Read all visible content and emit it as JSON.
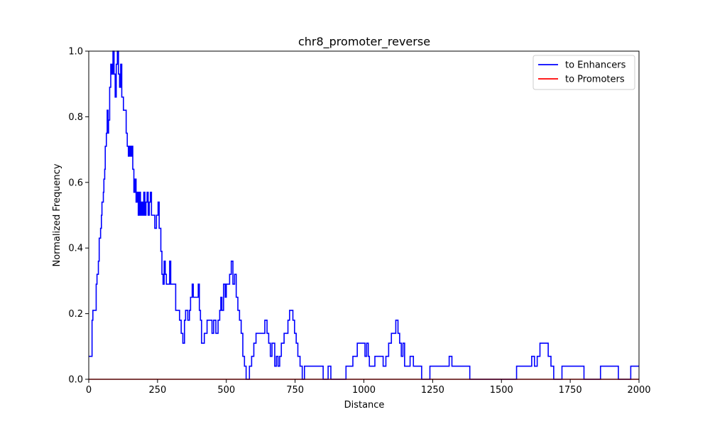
{
  "chart_data": {
    "type": "line",
    "title": "chr8_promoter_reverse",
    "xlabel": "Distance",
    "ylabel": "Normalized Frequency",
    "xlim": [
      0,
      2000
    ],
    "ylim": [
      0,
      1.0
    ],
    "xticks": [
      0,
      250,
      500,
      750,
      1000,
      1250,
      1500,
      1750,
      2000
    ],
    "xtick_labels": [
      "0",
      "250",
      "500",
      "750",
      "1000",
      "1250",
      "1500",
      "1750",
      "2000"
    ],
    "yticks": [
      0,
      0.2,
      0.4,
      0.6,
      0.8,
      1.0
    ],
    "ytick_labels": [
      "0.0",
      "0.2",
      "0.4",
      "0.6",
      "0.8",
      "1.0"
    ],
    "grid": false,
    "legend_position": "top-right",
    "series": [
      {
        "name": "to Enhancers",
        "color": "#0000ff",
        "step": true,
        "points": [
          [
            0,
            0.07
          ],
          [
            10,
            0.07
          ],
          [
            12,
            0.18
          ],
          [
            15,
            0.21
          ],
          [
            25,
            0.21
          ],
          [
            27,
            0.29
          ],
          [
            30,
            0.32
          ],
          [
            35,
            0.36
          ],
          [
            38,
            0.43
          ],
          [
            43,
            0.46
          ],
          [
            46,
            0.5
          ],
          [
            48,
            0.54
          ],
          [
            53,
            0.57
          ],
          [
            55,
            0.61
          ],
          [
            58,
            0.64
          ],
          [
            60,
            0.71
          ],
          [
            64,
            0.75
          ],
          [
            67,
            0.82
          ],
          [
            70,
            0.75
          ],
          [
            72,
            0.79
          ],
          [
            76,
            0.89
          ],
          [
            80,
            0.96
          ],
          [
            84,
            0.93
          ],
          [
            88,
            1.0
          ],
          [
            92,
            0.93
          ],
          [
            96,
            0.86
          ],
          [
            100,
            0.96
          ],
          [
            104,
            1.0
          ],
          [
            108,
            0.93
          ],
          [
            112,
            0.89
          ],
          [
            116,
            0.96
          ],
          [
            120,
            0.86
          ],
          [
            126,
            0.82
          ],
          [
            132,
            0.82
          ],
          [
            136,
            0.75
          ],
          [
            140,
            0.71
          ],
          [
            144,
            0.68
          ],
          [
            148,
            0.71
          ],
          [
            152,
            0.68
          ],
          [
            156,
            0.71
          ],
          [
            160,
            0.64
          ],
          [
            164,
            0.57
          ],
          [
            168,
            0.61
          ],
          [
            172,
            0.54
          ],
          [
            176,
            0.57
          ],
          [
            180,
            0.5
          ],
          [
            184,
            0.57
          ],
          [
            188,
            0.5
          ],
          [
            192,
            0.54
          ],
          [
            196,
            0.5
          ],
          [
            200,
            0.57
          ],
          [
            204,
            0.5
          ],
          [
            208,
            0.54
          ],
          [
            212,
            0.57
          ],
          [
            216,
            0.5
          ],
          [
            220,
            0.54
          ],
          [
            224,
            0.57
          ],
          [
            228,
            0.5
          ],
          [
            234,
            0.5
          ],
          [
            240,
            0.46
          ],
          [
            246,
            0.5
          ],
          [
            252,
            0.54
          ],
          [
            256,
            0.46
          ],
          [
            262,
            0.39
          ],
          [
            266,
            0.32
          ],
          [
            270,
            0.29
          ],
          [
            274,
            0.36
          ],
          [
            278,
            0.32
          ],
          [
            282,
            0.29
          ],
          [
            288,
            0.29
          ],
          [
            294,
            0.36
          ],
          [
            298,
            0.29
          ],
          [
            310,
            0.29
          ],
          [
            316,
            0.21
          ],
          [
            330,
            0.18
          ],
          [
            336,
            0.14
          ],
          [
            342,
            0.11
          ],
          [
            348,
            0.18
          ],
          [
            352,
            0.21
          ],
          [
            360,
            0.18
          ],
          [
            366,
            0.21
          ],
          [
            370,
            0.25
          ],
          [
            376,
            0.29
          ],
          [
            380,
            0.25
          ],
          [
            392,
            0.25
          ],
          [
            398,
            0.29
          ],
          [
            402,
            0.21
          ],
          [
            406,
            0.18
          ],
          [
            410,
            0.11
          ],
          [
            420,
            0.14
          ],
          [
            430,
            0.18
          ],
          [
            444,
            0.18
          ],
          [
            448,
            0.14
          ],
          [
            454,
            0.18
          ],
          [
            462,
            0.14
          ],
          [
            470,
            0.18
          ],
          [
            476,
            0.21
          ],
          [
            480,
            0.25
          ],
          [
            484,
            0.21
          ],
          [
            490,
            0.29
          ],
          [
            496,
            0.25
          ],
          [
            500,
            0.29
          ],
          [
            506,
            0.29
          ],
          [
            512,
            0.32
          ],
          [
            518,
            0.36
          ],
          [
            524,
            0.29
          ],
          [
            530,
            0.32
          ],
          [
            536,
            0.25
          ],
          [
            542,
            0.21
          ],
          [
            548,
            0.18
          ],
          [
            554,
            0.14
          ],
          [
            560,
            0.07
          ],
          [
            566,
            0.04
          ],
          [
            572,
            0.0
          ],
          [
            580,
            0.0
          ],
          [
            584,
            0.04
          ],
          [
            592,
            0.07
          ],
          [
            600,
            0.11
          ],
          [
            608,
            0.14
          ],
          [
            620,
            0.14
          ],
          [
            628,
            0.14
          ],
          [
            640,
            0.18
          ],
          [
            648,
            0.14
          ],
          [
            654,
            0.11
          ],
          [
            660,
            0.07
          ],
          [
            666,
            0.11
          ],
          [
            672,
            0.11
          ],
          [
            676,
            0.04
          ],
          [
            682,
            0.07
          ],
          [
            688,
            0.04
          ],
          [
            694,
            0.07
          ],
          [
            700,
            0.11
          ],
          [
            710,
            0.14
          ],
          [
            716,
            0.14
          ],
          [
            724,
            0.18
          ],
          [
            730,
            0.21
          ],
          [
            736,
            0.21
          ],
          [
            742,
            0.18
          ],
          [
            748,
            0.14
          ],
          [
            754,
            0.11
          ],
          [
            760,
            0.07
          ],
          [
            768,
            0.04
          ],
          [
            776,
            0.0
          ],
          [
            784,
            0.04
          ],
          [
            796,
            0.04
          ],
          [
            852,
            0.0
          ],
          [
            870,
            0.04
          ],
          [
            880,
            0.0
          ],
          [
            920,
            0.0
          ],
          [
            935,
            0.04
          ],
          [
            960,
            0.07
          ],
          [
            976,
            0.11
          ],
          [
            1000,
            0.11
          ],
          [
            1004,
            0.07
          ],
          [
            1010,
            0.11
          ],
          [
            1016,
            0.07
          ],
          [
            1020,
            0.04
          ],
          [
            1040,
            0.07
          ],
          [
            1060,
            0.07
          ],
          [
            1070,
            0.04
          ],
          [
            1080,
            0.07
          ],
          [
            1090,
            0.11
          ],
          [
            1100,
            0.14
          ],
          [
            1110,
            0.14
          ],
          [
            1116,
            0.18
          ],
          [
            1124,
            0.14
          ],
          [
            1130,
            0.11
          ],
          [
            1136,
            0.07
          ],
          [
            1142,
            0.11
          ],
          [
            1148,
            0.04
          ],
          [
            1160,
            0.04
          ],
          [
            1168,
            0.07
          ],
          [
            1180,
            0.04
          ],
          [
            1200,
            0.04
          ],
          [
            1210,
            0.0
          ],
          [
            1240,
            0.04
          ],
          [
            1300,
            0.04
          ],
          [
            1310,
            0.07
          ],
          [
            1320,
            0.04
          ],
          [
            1340,
            0.04
          ],
          [
            1385,
            0.0
          ],
          [
            1460,
            0.0
          ],
          [
            1520,
            0.0
          ],
          [
            1555,
            0.04
          ],
          [
            1600,
            0.04
          ],
          [
            1610,
            0.07
          ],
          [
            1620,
            0.04
          ],
          [
            1630,
            0.07
          ],
          [
            1640,
            0.11
          ],
          [
            1660,
            0.11
          ],
          [
            1670,
            0.07
          ],
          [
            1680,
            0.04
          ],
          [
            1690,
            0.0
          ],
          [
            1720,
            0.04
          ],
          [
            1790,
            0.04
          ],
          [
            1800,
            0.0
          ],
          [
            1860,
            0.04
          ],
          [
            1920,
            0.04
          ],
          [
            1925,
            0.0
          ],
          [
            1970,
            0.04
          ],
          [
            2000,
            0.04
          ]
        ]
      },
      {
        "name": "to Promoters",
        "color": "#ff0000",
        "step": true,
        "points": [
          [
            0,
            0.0
          ],
          [
            2000,
            0.0
          ]
        ]
      }
    ]
  }
}
